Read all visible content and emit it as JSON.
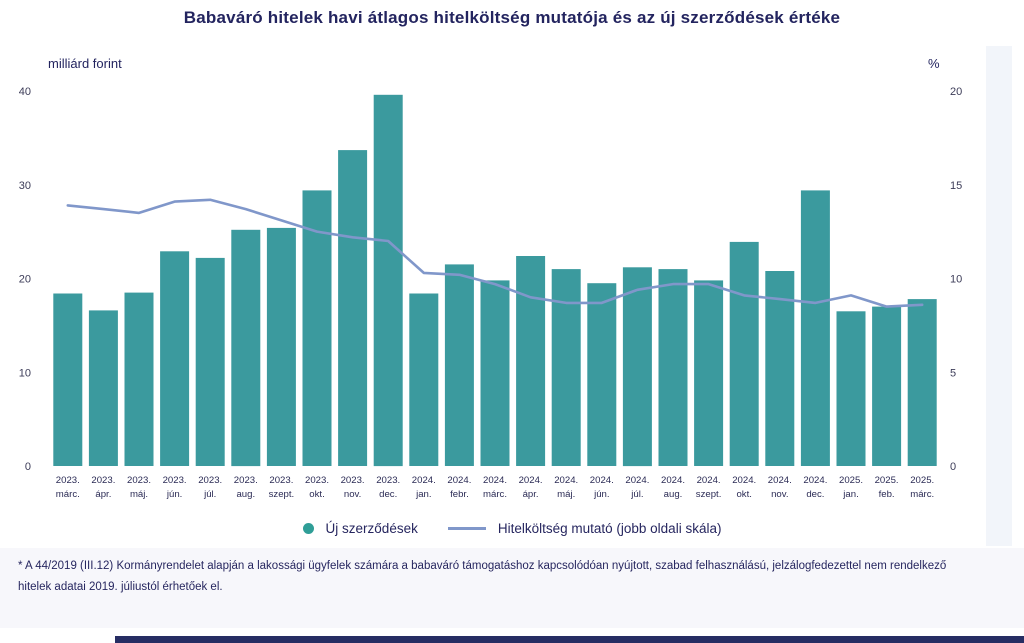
{
  "title": "Babaváró hitelek havi átlagos hitelköltség mutatója és az új szerződések értéke",
  "footnote": "* A 44/2019 (III.12) Kormányrendelet alapján a lakossági ügyfelek számára a babaváró támogatáshoz kapcsolódóan nyújtott, szabad felhasználású, jelzálogfedezettel nem rendelkező hitelek adatai 2019. júliustól érhetőek el.",
  "colors": {
    "bar": "#3b9a9e",
    "line": "#8097ca",
    "legend_dot": "#2f9e97",
    "text_navy": "#23245f",
    "tick_text": "#3c3c58",
    "footnote_bg": "#f7f7fb",
    "bottom_bar": "#262d63"
  },
  "chart_data": {
    "type": "bar",
    "subtype": "bar+line combo",
    "grid": false,
    "legend_position": "bottom",
    "categories": [
      {
        "year": "2023.",
        "month": "márc."
      },
      {
        "year": "2023.",
        "month": "ápr."
      },
      {
        "year": "2023.",
        "month": "máj."
      },
      {
        "year": "2023.",
        "month": "jún."
      },
      {
        "year": "2023.",
        "month": "júl."
      },
      {
        "year": "2023.",
        "month": "aug."
      },
      {
        "year": "2023.",
        "month": "szept."
      },
      {
        "year": "2023.",
        "month": "okt."
      },
      {
        "year": "2023.",
        "month": "nov."
      },
      {
        "year": "2023.",
        "month": "dec."
      },
      {
        "year": "2024.",
        "month": "jan."
      },
      {
        "year": "2024.",
        "month": "febr."
      },
      {
        "year": "2024.",
        "month": "márc."
      },
      {
        "year": "2024.",
        "month": "ápr."
      },
      {
        "year": "2024.",
        "month": "máj."
      },
      {
        "year": "2024.",
        "month": "jún."
      },
      {
        "year": "2024.",
        "month": "júl."
      },
      {
        "year": "2024.",
        "month": "aug."
      },
      {
        "year": "2024.",
        "month": "szept."
      },
      {
        "year": "2024.",
        "month": "okt."
      },
      {
        "year": "2024.",
        "month": "nov."
      },
      {
        "year": "2024.",
        "month": "dec."
      },
      {
        "year": "2025.",
        "month": "jan."
      },
      {
        "year": "2025.",
        "month": "feb."
      },
      {
        "year": "2025.",
        "month": "márc."
      }
    ],
    "series": [
      {
        "name": "Új szerződések",
        "type": "bar",
        "axis": "left",
        "unit": "milliárd forint",
        "color": "#3b9a9e",
        "values": [
          18.4,
          16.6,
          18.5,
          22.9,
          22.2,
          25.2,
          25.4,
          29.4,
          33.7,
          39.6,
          18.4,
          21.5,
          19.8,
          22.4,
          21.0,
          19.5,
          21.2,
          21.0,
          19.8,
          23.9,
          20.8,
          29.4,
          16.5,
          17.0,
          17.8
        ]
      },
      {
        "name": "Hitelköltség mutató (jobb oldali skála)",
        "type": "line",
        "axis": "right",
        "unit": "%",
        "color": "#8097ca",
        "values": [
          13.9,
          13.7,
          13.5,
          14.1,
          14.2,
          13.7,
          13.1,
          12.5,
          12.2,
          12.0,
          10.3,
          10.2,
          9.7,
          9.0,
          8.7,
          8.7,
          9.4,
          9.7,
          9.7,
          9.1,
          8.9,
          8.7,
          9.1,
          8.5,
          8.6
        ]
      }
    ],
    "left_axis": {
      "label": "milliárd forint",
      "ticks": [
        40,
        30,
        20,
        10,
        0
      ],
      "range": [
        0,
        40
      ]
    },
    "right_axis": {
      "label": "%",
      "ticks": [
        20,
        15,
        10,
        5,
        0
      ],
      "range": [
        0,
        20
      ]
    }
  }
}
